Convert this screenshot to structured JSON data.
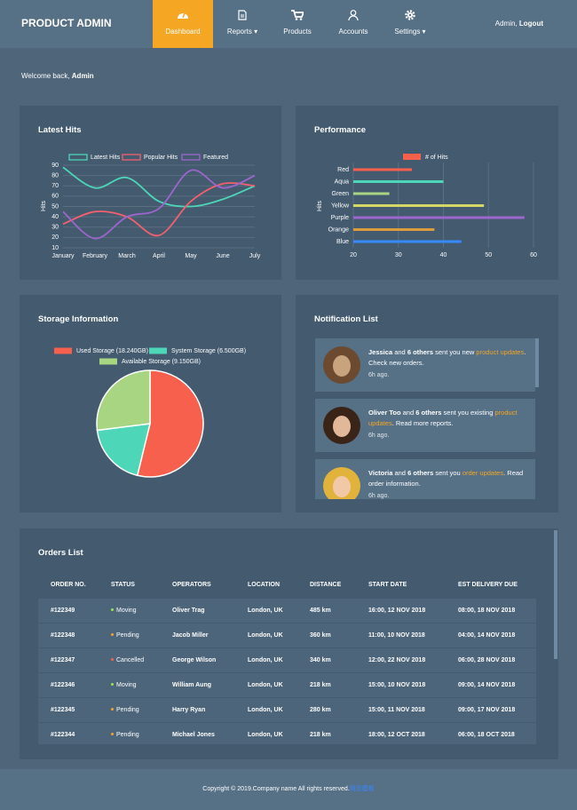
{
  "nav": {
    "brand": "PRODUCT ADMIN",
    "items": [
      "Dashboard",
      "Reports",
      "Products",
      "Accounts",
      "Settings"
    ],
    "user": "Admin,",
    "logout": "Logout"
  },
  "welcome": {
    "prefix": "Welcome back,",
    "name": "Admin"
  },
  "chart_data": [
    {
      "type": "line",
      "title": "Latest Hits",
      "y_label": "Hits",
      "categories": [
        "January",
        "February",
        "March",
        "April",
        "May",
        "June",
        "July"
      ],
      "ylim": [
        10,
        90
      ],
      "yticks": [
        10,
        20,
        30,
        40,
        50,
        60,
        70,
        80,
        90
      ],
      "grid": true,
      "series": [
        {
          "name": "Latest Hits",
          "color": "#4ed6b8",
          "values": [
            88,
            68,
            78,
            55,
            50,
            57,
            70
          ]
        },
        {
          "name": "Popular Hits",
          "color": "#f3606f",
          "values": [
            33,
            45,
            40,
            22,
            55,
            72,
            70
          ]
        },
        {
          "name": "Featured",
          "color": "#9d66cc",
          "values": [
            45,
            19,
            40,
            48,
            85,
            68,
            80
          ]
        }
      ]
    },
    {
      "type": "bar",
      "orientation": "horizontal",
      "title": "Performance",
      "y_label": "Hits",
      "legend": "# of Hits",
      "legend_color": "#f7604d",
      "categories": [
        "Red",
        "Aqua",
        "Green",
        "Yellow",
        "Purple",
        "Orange",
        "Blue"
      ],
      "values": [
        33,
        40,
        28,
        49,
        58,
        38,
        44
      ],
      "colors": [
        "#f7604d",
        "#4ed6b8",
        "#a8d582",
        "#d7d768",
        "#9d66cc",
        "#db9c3f",
        "#3889fc"
      ],
      "xlim": [
        20,
        60
      ],
      "xticks": [
        20,
        30,
        40,
        50,
        60
      ],
      "grid": true
    },
    {
      "type": "pie",
      "title": "Storage Information",
      "categories": [
        "Used Storage (18.240GB)",
        "System Storage (6.500GB)",
        "Available Storage (9.150GB)"
      ],
      "values": [
        18.24,
        6.5,
        9.15
      ],
      "colors": [
        "#f7604d",
        "#4ed6b8",
        "#a8d582"
      ]
    }
  ],
  "notifications": {
    "title": "Notification List",
    "items": [
      {
        "name": "Jessica",
        "mid": "and",
        "count": "6 others",
        "text": "sent you new",
        "link": "product updates",
        "tail": ". Check new orders.",
        "time": "6h ago."
      },
      {
        "name": "Oliver Too",
        "mid": "and",
        "count": "6 others",
        "text": "sent you existing",
        "link": "product updates",
        "tail": ". Read more reports.",
        "time": "6h ago."
      },
      {
        "name": "Victoria",
        "mid": "and",
        "count": "6 others",
        "text": "sent you",
        "link": "order updates",
        "tail": ". Read order information.",
        "time": "6h ago."
      }
    ]
  },
  "orders": {
    "title": "Orders List",
    "headers": [
      "ORDER NO.",
      "STATUS",
      "OPERATORS",
      "LOCATION",
      "DISTANCE",
      "START DATE",
      "EST DELIVERY DUE"
    ],
    "rows": [
      [
        "#122349",
        "Moving",
        "Oliver Trag",
        "London, UK",
        "485 km",
        "16:00, 12 NOV 2018",
        "08:00, 18 NOV 2018"
      ],
      [
        "#122348",
        "Pending",
        "Jacob Miller",
        "London, UK",
        "360 km",
        "11:00, 10 NOV 2018",
        "04:00, 14 NOV 2018"
      ],
      [
        "#122347",
        "Cancelled",
        "George Wilson",
        "London, UK",
        "340 km",
        "12:00, 22 NOV 2018",
        "06:00, 28 NOV 2018"
      ],
      [
        "#122346",
        "Moving",
        "William Aung",
        "London, UK",
        "218 km",
        "15:00, 10 NOV 2018",
        "09:00, 14 NOV 2018"
      ],
      [
        "#122345",
        "Pending",
        "Harry Ryan",
        "London, UK",
        "280 km",
        "15:00, 11 NOV 2018",
        "09:00, 17 NOV 2018"
      ],
      [
        "#122344",
        "Pending",
        "Michael Jones",
        "London, UK",
        "218 km",
        "18:00, 12 OCT 2018",
        "06:00, 18 OCT 2018"
      ]
    ],
    "status_colors": [
      "#9be64d",
      "#f5a623",
      "#f7604d",
      "#9be64d",
      "#f5a623",
      "#f5a623"
    ]
  },
  "footer": {
    "text": "Copyright © 2019.Company name All rights reserved.",
    "link": "网页模板"
  }
}
